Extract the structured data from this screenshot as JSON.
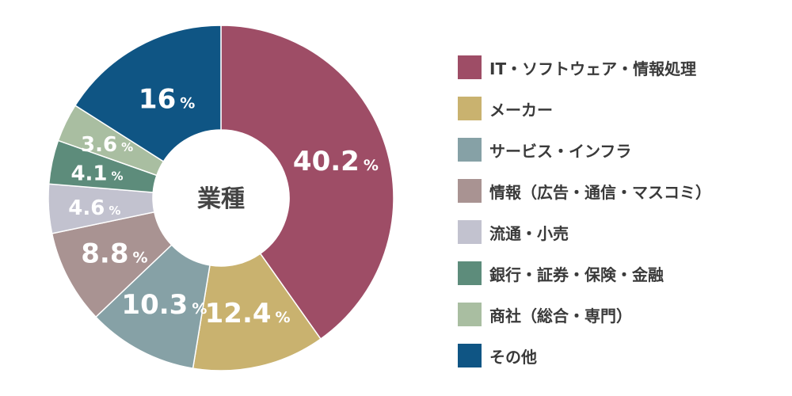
{
  "chart_data": {
    "type": "pie",
    "center_label": "業種",
    "percent_sign": "%",
    "slices": [
      {
        "label": "IT・ソフトウェア・情報処理",
        "value": 40.2,
        "display": "40.2",
        "color": "#9e4d66"
      },
      {
        "label": "メーカー",
        "value": 12.4,
        "display": "12.4",
        "color": "#c9b26f"
      },
      {
        "label": "サービス・インフラ",
        "value": 10.3,
        "display": "10.3",
        "color": "#86a1a6"
      },
      {
        "label": "情報（広告・通信・マスコミ）",
        "value": 8.8,
        "display": "8.8",
        "color": "#a99392"
      },
      {
        "label": "流通・小売",
        "value": 4.6,
        "display": "4.6",
        "color": "#c2c2cf"
      },
      {
        "label": "銀行・証券・保険・金融",
        "value": 4.1,
        "display": "4.1",
        "color": "#5d8c7b"
      },
      {
        "label": "商社（総合・専門）",
        "value": 3.6,
        "display": "3.6",
        "color": "#a9bea1"
      },
      {
        "label": "その他",
        "value": 16,
        "display": "16",
        "color": "#0f5584"
      }
    ]
  }
}
